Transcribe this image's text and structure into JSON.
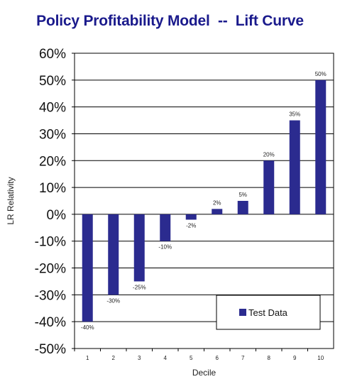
{
  "chart_data": {
    "type": "bar",
    "title": "Policy Profitability Model  --  Lift Curve",
    "xlabel": "Decile",
    "ylabel": "LR Relativity",
    "categories": [
      "1",
      "2",
      "3",
      "4",
      "5",
      "6",
      "7",
      "8",
      "9",
      "10"
    ],
    "series": [
      {
        "name": "Test Data",
        "values": [
          -40,
          -30,
          -25,
          -10,
          -2,
          2,
          5,
          20,
          35,
          50
        ],
        "labels": [
          "-40%",
          "-30%",
          "-25%",
          "-10%",
          "-2%",
          "2%",
          "5%",
          "20%",
          "35%",
          "50%"
        ]
      }
    ],
    "ylim": [
      -50,
      60
    ],
    "yticks": [
      60,
      50,
      40,
      30,
      20,
      10,
      0,
      -10,
      -20,
      -30,
      -40,
      -50
    ],
    "ytick_labels": [
      "60%",
      "50%",
      "40%",
      "30%",
      "20%",
      "10%",
      "0%",
      "-10%",
      "-20%",
      "-30%",
      "-40%",
      "-50%"
    ],
    "grid": true,
    "legend": "bottom-right",
    "colors": {
      "bar": "#2b2b8f",
      "title": "#1a1a8c"
    }
  }
}
